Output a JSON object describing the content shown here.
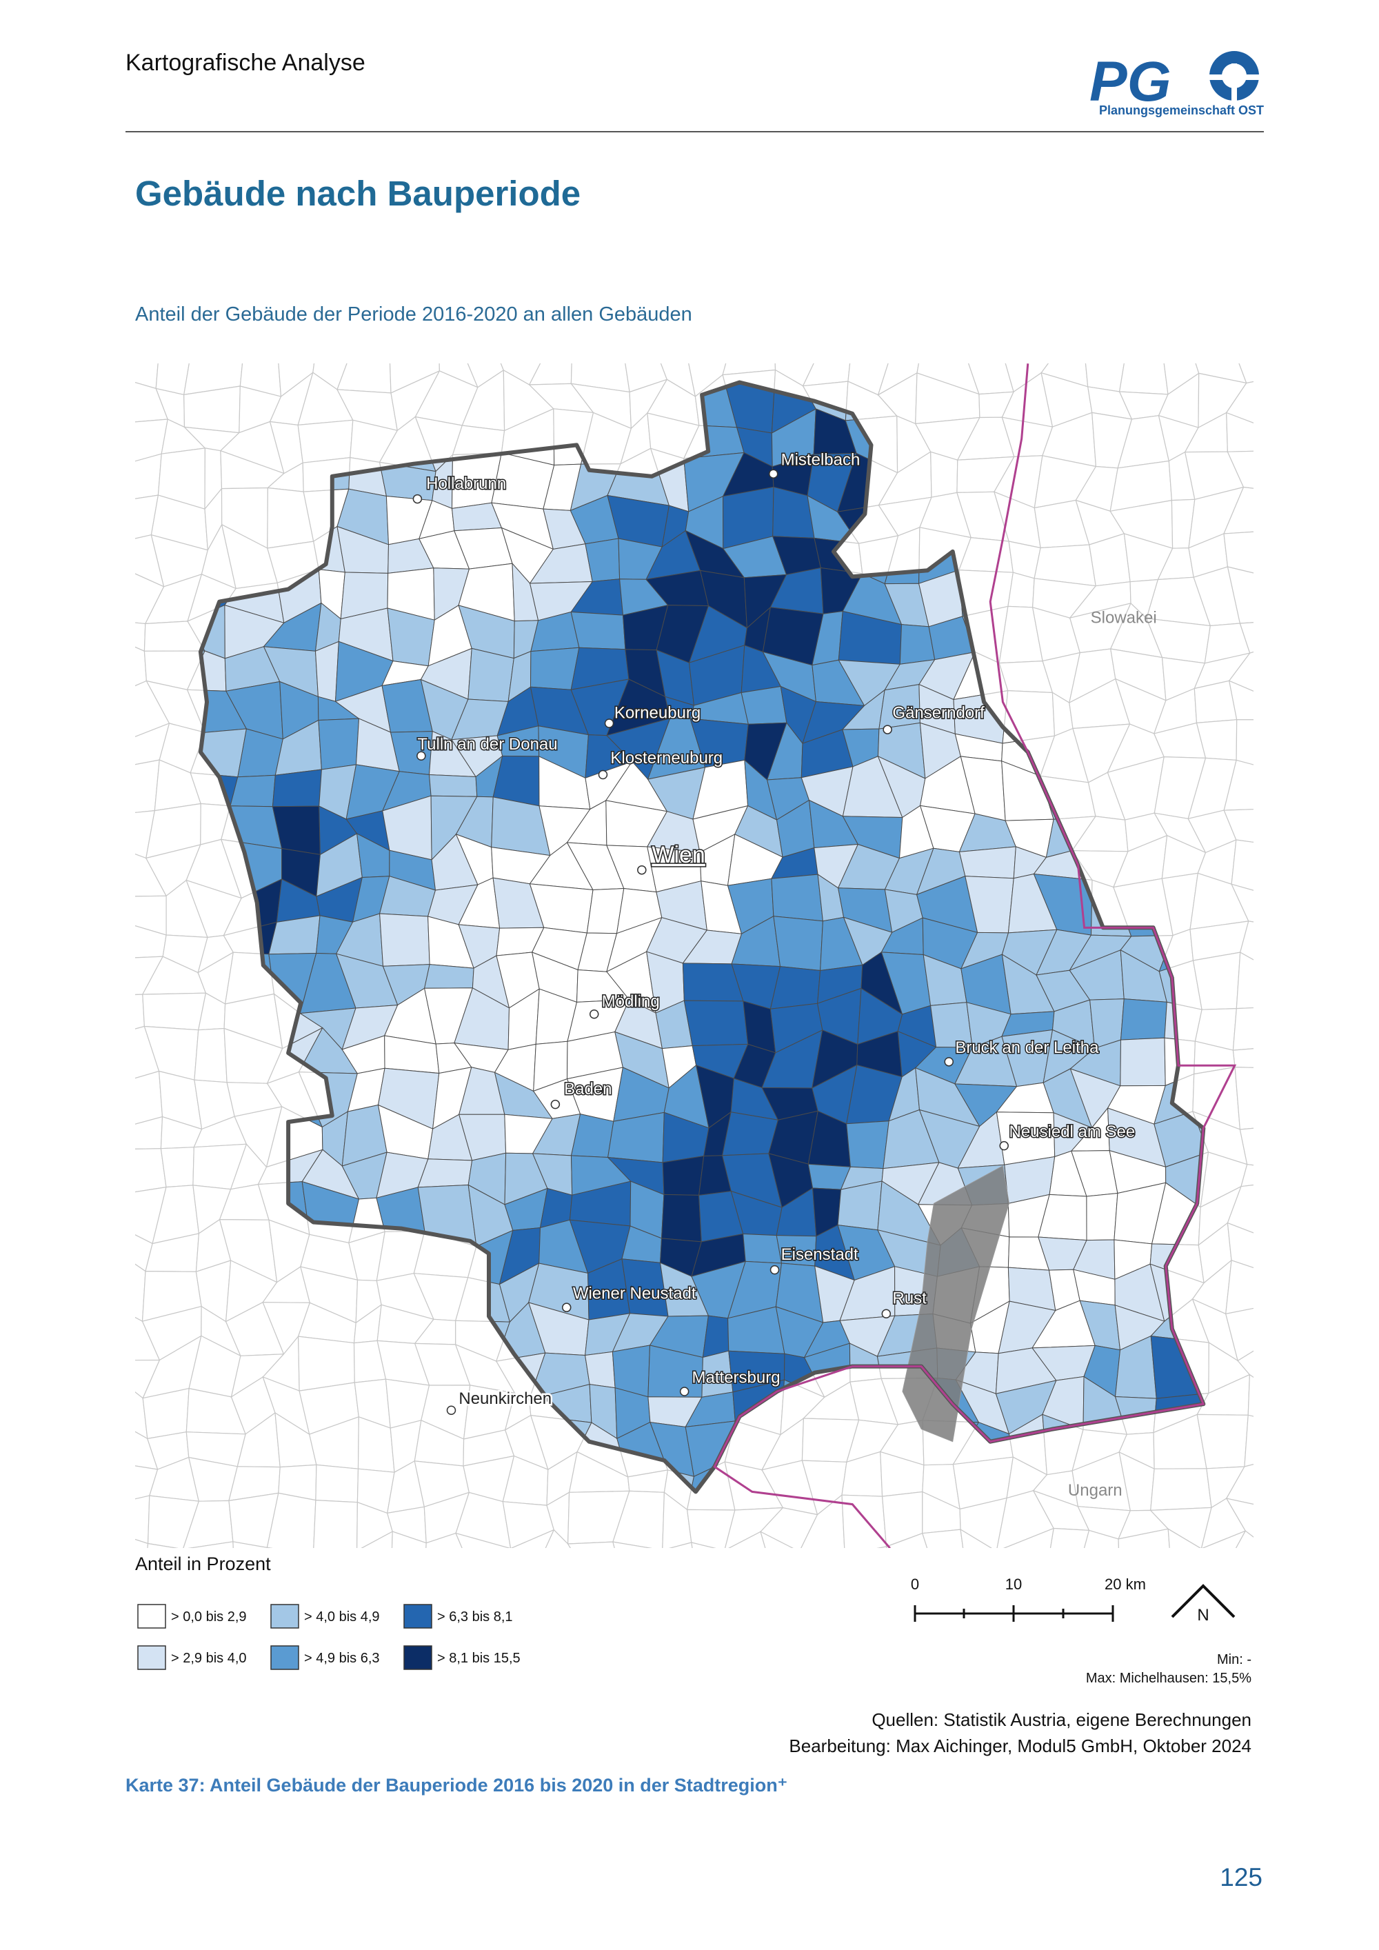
{
  "header": {
    "section": "Kartografische Analyse",
    "logo_mark": "PG",
    "logo_text": "Planungsgemeinschaft OST"
  },
  "title": "Gebäude nach Bauperiode",
  "map": {
    "subtitle": "Anteil der Gebäude der Periode 2016-2020 an allen Gebäuden",
    "places": [
      "Hollabrunn",
      "Mistelbach",
      "Slowakei",
      "Korneuburg",
      "Gänserndorf",
      "Tulln an der Donau",
      "Klosterneuburg",
      "Wien",
      "Mödling",
      "Bruck an der Leitha",
      "Baden",
      "Neusiedl am See",
      "Eisenstadt",
      "Wiener Neustadt",
      "Rust",
      "Mattersburg",
      "Neunkirchen",
      "Ungarn"
    ],
    "legend": {
      "title": "Anteil in Prozent",
      "classes": [
        {
          "label": "> 0,0 bis 2,9",
          "color": "#ffffff"
        },
        {
          "label": "> 2,9 bis 4,0",
          "color": "#d4e3f3"
        },
        {
          "label": "> 4,0 bis 4,9",
          "color": "#a3c7e6"
        },
        {
          "label": "> 4,9 bis 6,3",
          "color": "#5a9bd2"
        },
        {
          "label": "> 6,3 bis 8,1",
          "color": "#2466b0"
        },
        {
          "label": "> 8,1 bis 15,5",
          "color": "#0c2d66"
        }
      ]
    },
    "scale": [
      "0",
      "10",
      "20 km"
    ],
    "north": "N",
    "min": "Min: -",
    "max": "Max: Michelhausen: 15,5%",
    "sources": [
      "Quellen: Statistik Austria, eigene Berechnungen",
      "Bearbeitung: Max Aichinger, Modul5 GmbH, Oktober 2024"
    ]
  },
  "caption": "Karte 37: Anteil Gebäude der Bauperiode 2016 bis 2020 in der Stadtregion⁺",
  "page_number": "125"
}
